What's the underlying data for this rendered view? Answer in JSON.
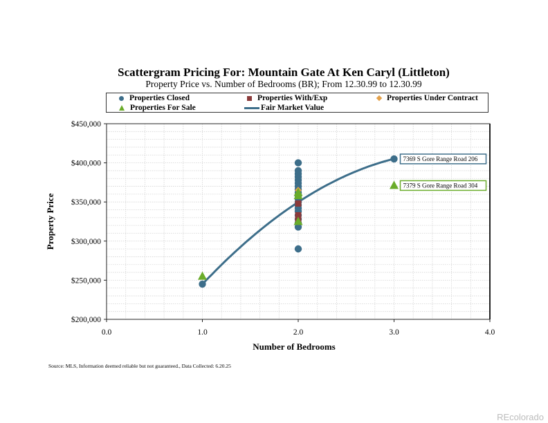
{
  "chart_data": {
    "type": "scatter",
    "title": "Scattergram Pricing For: Mountain Gate At Ken Caryl (Littleton)",
    "subtitle": "Property Price vs. Number of Bedrooms (BR); From 12.30.99 to 12.30.99",
    "xlabel": "Number of Bedrooms",
    "ylabel": "Property Price",
    "xlim": [
      0,
      4
    ],
    "ylim": [
      200000,
      450000
    ],
    "xticks": [
      0,
      1,
      2,
      3,
      4
    ],
    "xtick_labels": [
      "0.0",
      "1.0",
      "2.0",
      "3.0",
      "4.0"
    ],
    "yticks": [
      200000,
      250000,
      300000,
      350000,
      400000,
      450000
    ],
    "ytick_labels": [
      "$200,000",
      "$250,000",
      "$300,000",
      "$350,000",
      "$400,000",
      "$450,000"
    ],
    "grid": true,
    "series": [
      {
        "name": "Properties Closed",
        "marker": "circle",
        "color": "#3d6e8a",
        "points": [
          [
            1,
            245000
          ],
          [
            2,
            290000
          ],
          [
            2,
            318000
          ],
          [
            2,
            323000
          ],
          [
            2,
            328000
          ],
          [
            2,
            333000
          ],
          [
            2,
            338000
          ],
          [
            2,
            342000
          ],
          [
            2,
            346000
          ],
          [
            2,
            350000
          ],
          [
            2,
            354000
          ],
          [
            2,
            358000
          ],
          [
            2,
            362000
          ],
          [
            2,
            366000
          ],
          [
            2,
            370000
          ],
          [
            2,
            374000
          ],
          [
            2,
            378000
          ],
          [
            2,
            382000
          ],
          [
            2,
            386000
          ],
          [
            2,
            390000
          ],
          [
            2,
            400000
          ],
          [
            3,
            405000
          ]
        ]
      },
      {
        "name": "Properties With/Exp",
        "marker": "square",
        "color": "#8b3a3a",
        "points": [
          [
            2,
            327000
          ],
          [
            2,
            333000
          ],
          [
            2,
            348000
          ]
        ]
      },
      {
        "name": "Properties Under Contract",
        "marker": "diamond",
        "color": "#e3a14a",
        "points": [
          [
            2,
            365000
          ]
        ]
      },
      {
        "name": "Properties For Sale",
        "marker": "triangle",
        "color": "#6aac2a",
        "points": [
          [
            1,
            255000
          ],
          [
            2,
            325000
          ],
          [
            2,
            358000
          ],
          [
            2,
            362000
          ],
          [
            3,
            371000
          ]
        ]
      },
      {
        "name": "Fair Market Value",
        "type": "line",
        "color": "#3d6e8a",
        "points": [
          [
            1,
            245000
          ],
          [
            1.5,
            303000
          ],
          [
            2,
            350000
          ],
          [
            2.5,
            384000
          ],
          [
            3,
            405000
          ]
        ]
      }
    ],
    "annotations": [
      {
        "text": "7369 S Gore Range Road 206",
        "x": 3,
        "y": 405000,
        "color": "#3d6e8a"
      },
      {
        "text": "7379 S Gore Range Road 304",
        "x": 3,
        "y": 371000,
        "color": "#6aac2a"
      }
    ],
    "legend_position": "top"
  },
  "source": "Source: MLS, Information deemed reliable but not guaranteed., Data Collected: 6.20.25",
  "watermark": "REcolorado"
}
